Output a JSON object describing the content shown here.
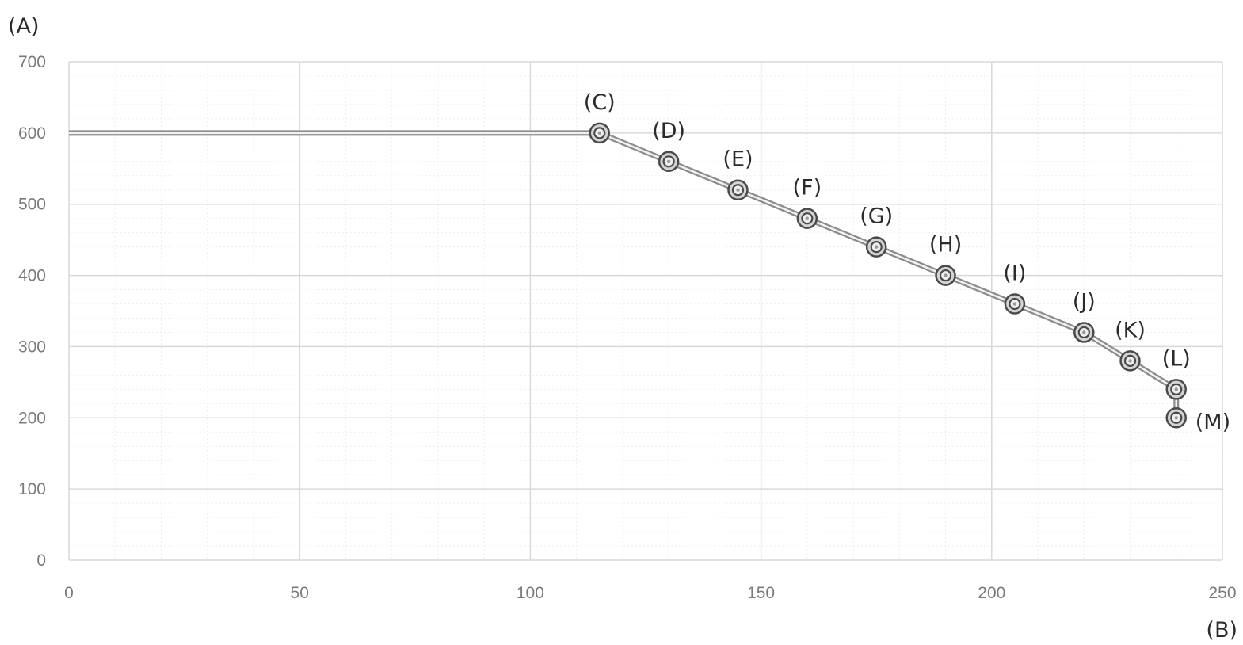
{
  "chart_data": {
    "type": "line",
    "xlabel": "(B)",
    "ylabel": "(A)",
    "xlim": [
      0,
      250
    ],
    "ylim": [
      0,
      700
    ],
    "x_ticks": [
      0,
      50,
      100,
      150,
      200,
      250
    ],
    "y_ticks": [
      0,
      100,
      200,
      300,
      400,
      500,
      600,
      700
    ],
    "grid": true,
    "minor_grid": true,
    "legend": "none",
    "colors": {
      "line": "#8c8c8c",
      "line_core": "#f2f2f2",
      "marker": "#4a4a4a",
      "grid_major": "#d9d9d9",
      "grid_minor": "#efefef"
    },
    "series": [
      {
        "x": [
          0,
          115,
          130,
          145,
          160,
          175,
          190,
          205,
          220,
          230,
          240,
          240
        ],
        "y": [
          600,
          600,
          560,
          520,
          480,
          440,
          400,
          360,
          320,
          280,
          240,
          200
        ]
      }
    ],
    "points": [
      {
        "label": "(C)",
        "x": 115,
        "y": 600
      },
      {
        "label": "(D)",
        "x": 130,
        "y": 560
      },
      {
        "label": "(E)",
        "x": 145,
        "y": 520
      },
      {
        "label": "(F)",
        "x": 160,
        "y": 480
      },
      {
        "label": "(G)",
        "x": 175,
        "y": 440
      },
      {
        "label": "(H)",
        "x": 190,
        "y": 400
      },
      {
        "label": "(I)",
        "x": 205,
        "y": 360
      },
      {
        "label": "(J)",
        "x": 220,
        "y": 320
      },
      {
        "label": "(K)",
        "x": 230,
        "y": 280
      },
      {
        "label": "(L)",
        "x": 240,
        "y": 240
      },
      {
        "label": "(M)",
        "x": 240,
        "y": 200
      }
    ]
  }
}
